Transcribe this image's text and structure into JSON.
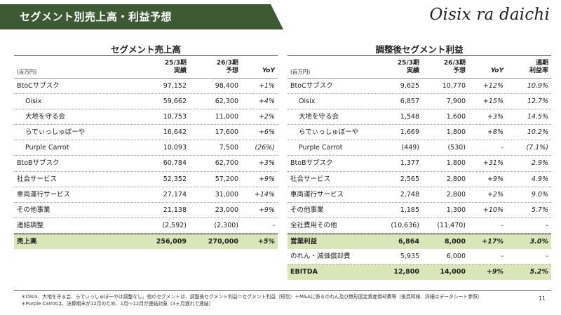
{
  "header": {
    "title": "セグメント別売上高・利益予想",
    "logo": "Oisix ra daichi"
  },
  "colors": {
    "banner": "#3d5a35",
    "highlight": "#d9e6b8"
  },
  "sales": {
    "title": "セグメント売上高",
    "unit": "(百万円)",
    "col1": [
      "25/3期",
      "実績"
    ],
    "col2": [
      "26/3期",
      "予想"
    ],
    "col3": "YoY",
    "rows": [
      {
        "label": "BtoCサブスク",
        "a": "97,152",
        "b": "98,400",
        "yoy": "+1%"
      },
      {
        "label": "Oisix",
        "a": "59,662",
        "b": "62,300",
        "yoy": "+4%"
      },
      {
        "label": "大地を守る会",
        "a": "10,753",
        "b": "11,000",
        "yoy": "+2%"
      },
      {
        "label": "らでぃっしゅぼーや",
        "a": "16,642",
        "b": "17,600",
        "yoy": "+6%"
      },
      {
        "label": "Purple Carrot",
        "a": "10,093",
        "b": "7,500",
        "yoy": "(26%)"
      },
      {
        "label": "BtoBサブスク",
        "a": "60,784",
        "b": "62,700",
        "yoy": "+3%"
      },
      {
        "label": "社会サービス",
        "a": "52,352",
        "b": "57,200",
        "yoy": "+9%"
      },
      {
        "label": "車両運行サービス",
        "a": "27,174",
        "b": "31,000",
        "yoy": "+14%"
      },
      {
        "label": "その他事業",
        "a": "21,138",
        "b": "23,000",
        "yoy": "+9%"
      },
      {
        "label": "連結調整",
        "a": "(2,592)",
        "b": "(2,300)",
        "yoy": "-"
      }
    ],
    "total": {
      "label": "売上高",
      "a": "256,009",
      "b": "270,000",
      "yoy": "+5%"
    }
  },
  "profit": {
    "title": "調整後セグメント利益",
    "unit": "(百万円)",
    "col1": [
      "25/3期",
      "実績"
    ],
    "col2": [
      "26/3期",
      "予想"
    ],
    "col3": "YoY",
    "col4": [
      "通期",
      "利益率"
    ],
    "rows": [
      {
        "label": "BtoCサブスク",
        "a": "9,625",
        "b": "10,770",
        "yoy": "+12%",
        "m": "10.9%"
      },
      {
        "label": "Oisix",
        "a": "6,857",
        "b": "7,900",
        "yoy": "+15%",
        "m": "12.7%"
      },
      {
        "label": "大地を守る会",
        "a": "1,548",
        "b": "1,600",
        "yoy": "+3%",
        "m": "14.5%"
      },
      {
        "label": "らでぃっしゅぼーや",
        "a": "1,669",
        "b": "1,800",
        "yoy": "+8%",
        "m": "10.2%"
      },
      {
        "label": "Purple Carrot",
        "a": "(449)",
        "b": "(530)",
        "yoy": "-",
        "m": "(7.1%)"
      },
      {
        "label": "BtoBサブスク",
        "a": "1,377",
        "b": "1,800",
        "yoy": "+31%",
        "m": "2.9%"
      },
      {
        "label": "社会サービス",
        "a": "2,565",
        "b": "2,800",
        "yoy": "+9%",
        "m": "4.9%"
      },
      {
        "label": "車両運行サービス",
        "a": "2,748",
        "b": "2,800",
        "yoy": "+2%",
        "m": "9.0%"
      },
      {
        "label": "その他事業",
        "a": "1,185",
        "b": "1,300",
        "yoy": "+10%",
        "m": "5.7%"
      },
      {
        "label": "全社費用その他",
        "a": "(10,636)",
        "b": "(11,470)",
        "yoy": "-",
        "m": "-"
      }
    ],
    "total": {
      "label": "営業利益",
      "a": "6,864",
      "b": "8,000",
      "yoy": "+17%",
      "m": "3.0%"
    },
    "amort": {
      "label": "のれん・減価償却費",
      "a": "5,935",
      "b": "6,000",
      "yoy": "-",
      "m": "-"
    },
    "ebitda": {
      "label": "EBITDA",
      "a": "12,800",
      "b": "14,000",
      "yoy": "+9%",
      "m": "5.2%"
    }
  },
  "notes": [
    "＊Oisix、大地を守る会、らでぃっしゅぼーやは調整なし。他のセグメントは、調整後セグメント利益＝セグメント利益（短信）＋M&Aに係るのれん及び無形固定資産償却費等（後頁同様、詳細はデータシート参照）",
    "＊Purple Carrotは、決算期末が12月のため、1月〜12月が連結対象（3ヶ月遅れで連結）"
  ],
  "page_number": "11"
}
